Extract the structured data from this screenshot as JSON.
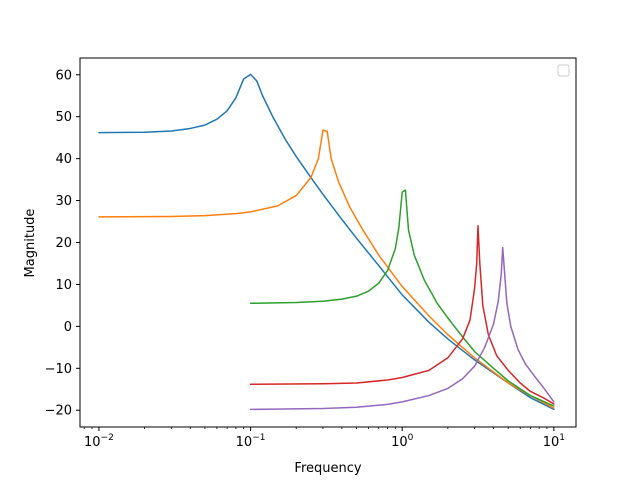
{
  "chart_data": {
    "type": "line",
    "title": "",
    "xlabel": "Frequency",
    "ylabel": "Magnitude",
    "xscale": "log",
    "xlim": [
      0.0075,
      14
    ],
    "ylim": [
      -24,
      64
    ],
    "xticks": [
      {
        "value": 0.01,
        "base": "10",
        "exp": "−2"
      },
      {
        "value": 0.1,
        "base": "10",
        "exp": "−1"
      },
      {
        "value": 1,
        "base": "10",
        "exp": "0"
      },
      {
        "value": 10,
        "base": "10",
        "exp": "1"
      }
    ],
    "yticks": [
      {
        "value": 60,
        "label": "60"
      },
      {
        "value": 50,
        "label": "50"
      },
      {
        "value": 40,
        "label": "40"
      },
      {
        "value": 30,
        "label": "30"
      },
      {
        "value": 20,
        "label": "20"
      },
      {
        "value": 10,
        "label": "10"
      },
      {
        "value": 0,
        "label": "0"
      },
      {
        "value": -10,
        "label": "−10"
      },
      {
        "value": -20,
        "label": "−20"
      }
    ],
    "grid": false,
    "legend": {
      "placement": "top-right",
      "entries": []
    },
    "series": [
      {
        "color": "#1f77b4",
        "points": [
          [
            0.01,
            46.2
          ],
          [
            0.02,
            46.3
          ],
          [
            0.03,
            46.6
          ],
          [
            0.04,
            47.2
          ],
          [
            0.05,
            48.0
          ],
          [
            0.06,
            49.4
          ],
          [
            0.07,
            51.4
          ],
          [
            0.08,
            54.5
          ],
          [
            0.09,
            59.0
          ],
          [
            0.1,
            60.1
          ],
          [
            0.11,
            58.5
          ],
          [
            0.12,
            55.0
          ],
          [
            0.14,
            50.0
          ],
          [
            0.17,
            44.5
          ],
          [
            0.2,
            40.5
          ],
          [
            0.25,
            35.5
          ],
          [
            0.3,
            31.5
          ],
          [
            0.4,
            25.5
          ],
          [
            0.5,
            21.0
          ],
          [
            0.7,
            14.5
          ],
          [
            1,
            7.5
          ],
          [
            1.5,
            1.0
          ],
          [
            2,
            -3.0
          ],
          [
            3,
            -8.0
          ],
          [
            5,
            -13.5
          ],
          [
            7,
            -17.0
          ],
          [
            10,
            -19.8
          ]
        ]
      },
      {
        "color": "#ff7f0e",
        "points": [
          [
            0.01,
            26.1
          ],
          [
            0.03,
            26.2
          ],
          [
            0.05,
            26.4
          ],
          [
            0.08,
            26.9
          ],
          [
            0.1,
            27.3
          ],
          [
            0.15,
            28.7
          ],
          [
            0.2,
            31.2
          ],
          [
            0.25,
            35.5
          ],
          [
            0.28,
            40.0
          ],
          [
            0.3,
            46.8
          ],
          [
            0.32,
            46.5
          ],
          [
            0.34,
            40.0
          ],
          [
            0.38,
            34.5
          ],
          [
            0.45,
            28.5
          ],
          [
            0.55,
            23.0
          ],
          [
            0.7,
            17.0
          ],
          [
            1,
            9.5
          ],
          [
            1.5,
            2.5
          ],
          [
            2,
            -2.0
          ],
          [
            3,
            -7.5
          ],
          [
            5,
            -13.5
          ],
          [
            7,
            -16.5
          ],
          [
            10,
            -19.5
          ]
        ]
      },
      {
        "color": "#2ca02c",
        "points": [
          [
            0.1,
            5.5
          ],
          [
            0.2,
            5.7
          ],
          [
            0.3,
            6.0
          ],
          [
            0.4,
            6.5
          ],
          [
            0.5,
            7.2
          ],
          [
            0.6,
            8.4
          ],
          [
            0.7,
            10.3
          ],
          [
            0.8,
            13.3
          ],
          [
            0.9,
            18.5
          ],
          [
            0.95,
            23.5
          ],
          [
            1,
            32.0
          ],
          [
            1.05,
            32.5
          ],
          [
            1.1,
            23.0
          ],
          [
            1.2,
            17.0
          ],
          [
            1.4,
            11.0
          ],
          [
            1.7,
            5.5
          ],
          [
            2,
            2.0
          ],
          [
            2.5,
            -2.5
          ],
          [
            3,
            -6.0
          ],
          [
            4,
            -10.0
          ],
          [
            5,
            -13.0
          ],
          [
            7,
            -16.5
          ],
          [
            10,
            -19.0
          ]
        ]
      },
      {
        "color": "#d62728",
        "points": [
          [
            0.1,
            -13.8
          ],
          [
            0.3,
            -13.7
          ],
          [
            0.5,
            -13.5
          ],
          [
            0.8,
            -12.8
          ],
          [
            1,
            -12.2
          ],
          [
            1.5,
            -10.5
          ],
          [
            2,
            -7.5
          ],
          [
            2.5,
            -3.0
          ],
          [
            2.8,
            1.5
          ],
          [
            3,
            9.0
          ],
          [
            3.1,
            15.0
          ],
          [
            3.16,
            24.0
          ],
          [
            3.25,
            15.0
          ],
          [
            3.4,
            5.0
          ],
          [
            3.7,
            -2.0
          ],
          [
            4.2,
            -7.0
          ],
          [
            5,
            -10.5
          ],
          [
            6,
            -13.5
          ],
          [
            7,
            -15.5
          ],
          [
            8.5,
            -17.0
          ],
          [
            10,
            -18.5
          ]
        ]
      },
      {
        "color": "#9467bd",
        "points": [
          [
            0.1,
            -19.8
          ],
          [
            0.3,
            -19.6
          ],
          [
            0.5,
            -19.3
          ],
          [
            0.8,
            -18.6
          ],
          [
            1,
            -18.0
          ],
          [
            1.5,
            -16.5
          ],
          [
            2,
            -14.8
          ],
          [
            2.5,
            -12.5
          ],
          [
            3,
            -9.5
          ],
          [
            3.5,
            -5.0
          ],
          [
            4,
            0.5
          ],
          [
            4.3,
            6.0
          ],
          [
            4.5,
            12.5
          ],
          [
            4.6,
            18.8
          ],
          [
            4.75,
            12.0
          ],
          [
            4.9,
            5.5
          ],
          [
            5.2,
            0.0
          ],
          [
            5.8,
            -5.5
          ],
          [
            6.5,
            -9.0
          ],
          [
            7.5,
            -12.0
          ],
          [
            8.5,
            -14.5
          ],
          [
            10,
            -18.0
          ]
        ]
      }
    ]
  }
}
